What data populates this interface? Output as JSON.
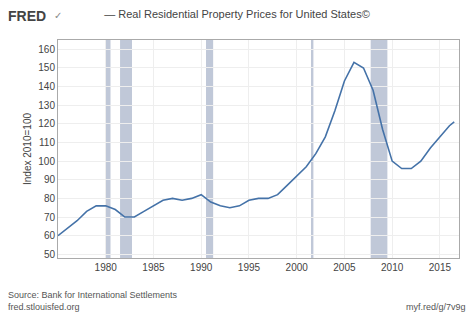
{
  "chart_data": {
    "type": "line",
    "title": "— Real Residential Property Prices for United States©",
    "ylabel": "Index 2010=100",
    "annotations": [
      "FRED",
      "✓",
      "Source: Bank for International Settlements\nfred.stlouisfed.org",
      "myf.red/g/7v9g"
    ],
    "x": [
      1975,
      1976,
      1977,
      1978,
      1979,
      1980,
      1981,
      1982,
      1983,
      1984,
      1985,
      1986,
      1987,
      1988,
      1989,
      1990,
      1991,
      1992,
      1993,
      1994,
      1995,
      1996,
      1997,
      1998,
      1999,
      2000,
      2001,
      2002,
      2003,
      2004,
      2005,
      2006,
      2007,
      2008,
      2009,
      2010,
      2011,
      2012,
      2013,
      2014,
      2015,
      2016,
      2016.5
    ],
    "values": [
      60,
      64,
      68,
      73,
      76,
      76,
      74,
      70,
      70,
      73,
      76,
      79,
      80,
      79,
      80,
      82,
      78,
      76,
      75,
      76,
      79,
      80,
      80,
      82,
      87,
      92,
      97,
      104,
      113,
      127,
      143,
      153,
      150,
      138,
      117,
      100,
      96,
      96,
      100,
      107,
      113,
      119,
      121
    ],
    "color": "#4472a8",
    "recessions": {
      "color": "#c0c8d8",
      "ranges": [
        [
          1980.0,
          1980.5
        ],
        [
          1981.5,
          1982.75
        ],
        [
          1990.5,
          1991.25
        ],
        [
          2001.5,
          2001.75
        ],
        [
          2007.75,
          2009.5
        ]
      ]
    },
    "xlim": [
      1975,
      2017
    ],
    "ylim": [
      48,
      165
    ],
    "xticks": [
      1980,
      1985,
      1990,
      1995,
      2000,
      2005,
      2010,
      2015
    ],
    "yticks": [
      50,
      60,
      70,
      80,
      90,
      100,
      110,
      120,
      130,
      140,
      150,
      160
    ],
    "grid": true
  }
}
